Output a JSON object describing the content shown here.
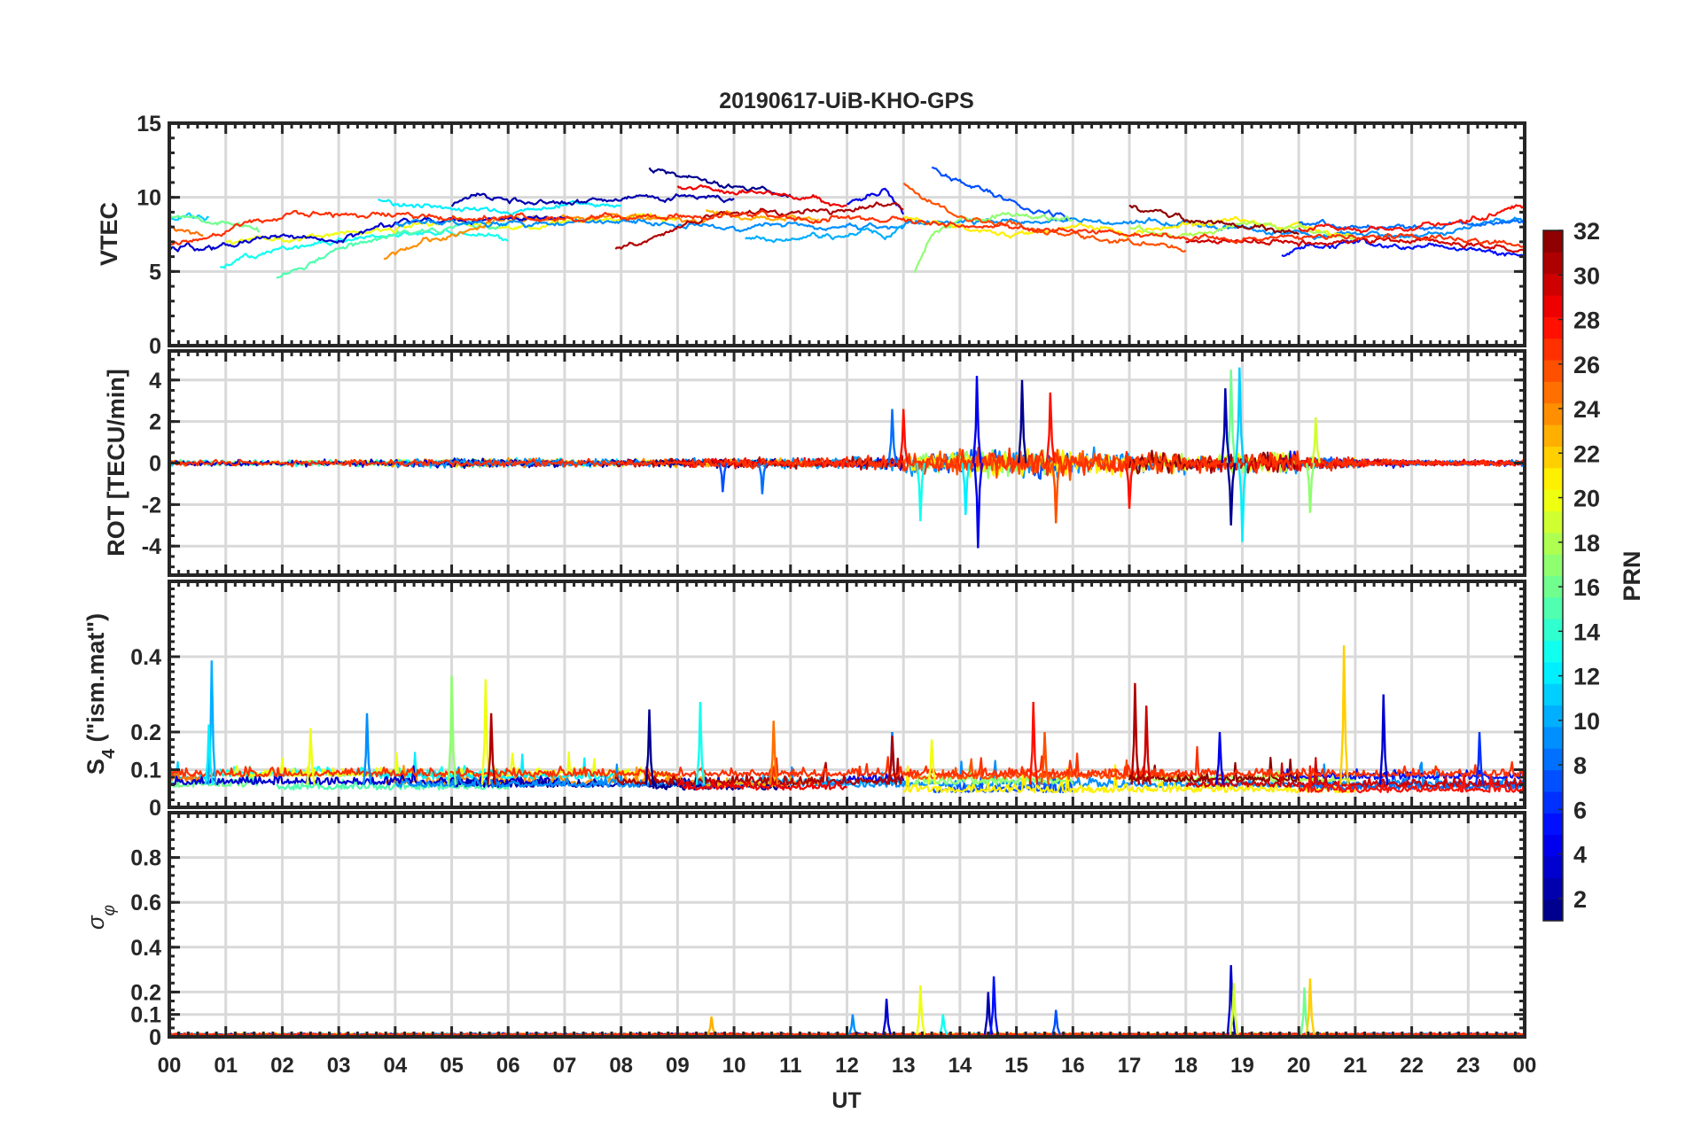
{
  "chart_data": {
    "type": "line",
    "title": "20190617-UiB-KHO-GPS",
    "xlabel": "UT",
    "xlim": [
      0,
      24
    ],
    "xtick_labels": [
      "00",
      "01",
      "02",
      "03",
      "04",
      "05",
      "06",
      "07",
      "08",
      "09",
      "10",
      "11",
      "12",
      "13",
      "14",
      "15",
      "16",
      "17",
      "18",
      "19",
      "20",
      "21",
      "22",
      "23",
      "00"
    ],
    "grid": true,
    "colorbar": {
      "label": "PRN",
      "range": [
        1,
        32
      ],
      "levels": 32,
      "colormap": "jet",
      "ticks": [
        "2",
        "4",
        "6",
        "8",
        "10",
        "12",
        "14",
        "16",
        "18",
        "20",
        "22",
        "24",
        "26",
        "28",
        "30",
        "32"
      ]
    },
    "panels": [
      {
        "id": "vtec",
        "ylabel": "VTEC",
        "ylim": [
          0,
          15
        ],
        "yticks": [
          0,
          5,
          10,
          15
        ],
        "ytick_labels": [
          "0",
          "5",
          "10",
          "15"
        ],
        "yminor": 1
      },
      {
        "id": "rot",
        "ylabel": "ROT [TECU/min]",
        "ylim": [
          -5.4,
          5.4
        ],
        "yticks": [
          -4,
          -2,
          0,
          2,
          4
        ],
        "ytick_labels": [
          "-4",
          "-2",
          "0",
          "2",
          "4"
        ],
        "yminor": 0.5
      },
      {
        "id": "s4",
        "ylabel_main": "S",
        "ylabel_sub": "4",
        "ylabel_rest": " (\"ism.mat\")",
        "ylim": [
          0,
          0.6
        ],
        "yticks": [
          0,
          0.1,
          0.2,
          0.4
        ],
        "ytick_labels": [
          "0",
          "0.1",
          "0.2",
          "0.4"
        ],
        "yminor": 0.02
      },
      {
        "id": "sigma",
        "ylabel_main": "σ",
        "ylabel_sub": "φ",
        "ylim": [
          0,
          1
        ],
        "yticks": [
          0,
          0.1,
          0.2,
          0.4,
          0.6,
          0.8
        ],
        "ytick_labels": [
          "0",
          "0.1",
          "0.2",
          "0.4",
          "0.6",
          "0.8"
        ],
        "yminor": 0.04
      }
    ],
    "vtec_arcs": [
      {
        "prn": 11,
        "points": [
          [
            0,
            8.5
          ],
          [
            0.7,
            8.7
          ]
        ]
      },
      {
        "prn": 16,
        "points": [
          [
            0,
            8.7
          ],
          [
            1,
            8.2
          ],
          [
            1.6,
            7.7
          ]
        ]
      },
      {
        "prn": 25,
        "points": [
          [
            0,
            8
          ],
          [
            0.6,
            7.3
          ]
        ]
      },
      {
        "prn": 13,
        "points": [
          [
            0.9,
            5.2
          ],
          [
            2,
            6.7
          ],
          [
            3,
            7
          ],
          [
            4,
            7.5
          ],
          [
            5,
            7.5
          ],
          [
            6,
            7.2
          ]
        ]
      },
      {
        "prn": 20,
        "points": [
          [
            1,
            7
          ],
          [
            2,
            7.2
          ],
          [
            4,
            7.7
          ],
          [
            5,
            8.5
          ],
          [
            6,
            8
          ],
          [
            7,
            8.4
          ],
          [
            9,
            8.6
          ]
        ]
      },
      {
        "prn": 15,
        "points": [
          [
            1.9,
            4.5
          ],
          [
            3,
            6.5
          ],
          [
            4,
            7.5
          ],
          [
            5,
            7.8
          ],
          [
            6,
            8.2
          ]
        ]
      },
      {
        "prn": 12,
        "points": [
          [
            3.7,
            9.8
          ],
          [
            5,
            9.5
          ],
          [
            6,
            9
          ],
          [
            7,
            9.5
          ],
          [
            8,
            9.6
          ]
        ]
      },
      {
        "prn": 24,
        "points": [
          [
            3.8,
            5.8
          ],
          [
            4.5,
            7.2
          ],
          [
            5,
            7.5
          ],
          [
            6,
            8.5
          ],
          [
            8,
            8.8
          ],
          [
            9.5,
            8.2
          ]
        ]
      },
      {
        "prn": 3,
        "points": [
          [
            0,
            6.5
          ],
          [
            1,
            6.8
          ],
          [
            2,
            7.2
          ],
          [
            3,
            7.3
          ],
          [
            4,
            8.3
          ],
          [
            5,
            8.5
          ],
          [
            6,
            8.6
          ],
          [
            7,
            8.4
          ]
        ]
      },
      {
        "prn": 2,
        "points": [
          [
            5,
            9.5
          ],
          [
            5.5,
            10.3
          ],
          [
            6,
            9.8
          ],
          [
            7,
            9.7
          ],
          [
            9,
            10
          ],
          [
            10,
            10
          ]
        ]
      },
      {
        "prn": 9,
        "points": [
          [
            4,
            8.3
          ],
          [
            6,
            8.2
          ],
          [
            8,
            8.4
          ],
          [
            10,
            8.1
          ],
          [
            12,
            8
          ],
          [
            14,
            8.5
          ],
          [
            16,
            8.4
          ],
          [
            18,
            8.2
          ],
          [
            20,
            7.6
          ],
          [
            22,
            7.3
          ],
          [
            24,
            8.5
          ]
        ]
      },
      {
        "prn": 1,
        "points": [
          [
            8.5,
            12
          ],
          [
            9,
            11.5
          ],
          [
            10,
            10.8
          ],
          [
            11,
            10.2
          ]
        ]
      },
      {
        "prn": 10,
        "points": [
          [
            10.2,
            7.2
          ],
          [
            11,
            7.2
          ],
          [
            12,
            7.5
          ],
          [
            13,
            7.8
          ]
        ]
      },
      {
        "prn": 4,
        "points": [
          [
            12,
            9.5
          ],
          [
            12.7,
            10.5
          ],
          [
            13,
            9
          ]
        ]
      },
      {
        "prn": 7,
        "points": [
          [
            13.5,
            12
          ],
          [
            14,
            11
          ],
          [
            15,
            9.5
          ],
          [
            16,
            8.5
          ]
        ]
      },
      {
        "prn": 17,
        "points": [
          [
            13.2,
            5
          ],
          [
            13.5,
            7.5
          ],
          [
            14,
            8.5
          ],
          [
            15,
            9
          ],
          [
            16,
            8.5
          ]
        ]
      },
      {
        "prn": 21,
        "points": [
          [
            13,
            8.5
          ],
          [
            14,
            8
          ],
          [
            15,
            7.5
          ],
          [
            16,
            8
          ],
          [
            17,
            7.5
          ],
          [
            18,
            8
          ],
          [
            19,
            8.5
          ],
          [
            20,
            8
          ],
          [
            21,
            7.3
          ]
        ]
      },
      {
        "prn": 18,
        "points": [
          [
            17,
            8
          ],
          [
            18,
            7.5
          ],
          [
            19,
            8.2
          ],
          [
            20,
            8
          ],
          [
            21,
            7
          ]
        ]
      },
      {
        "prn": 5,
        "points": [
          [
            19.7,
            6
          ],
          [
            20,
            6.5
          ],
          [
            21,
            7
          ],
          [
            22,
            6.5
          ],
          [
            23,
            6.5
          ],
          [
            24,
            6
          ]
        ]
      },
      {
        "prn": 8,
        "points": [
          [
            20,
            8.2
          ],
          [
            22,
            8
          ],
          [
            24,
            8.4
          ]
        ]
      },
      {
        "prn": 23,
        "points": [
          [
            9.5,
            9
          ],
          [
            10.5,
            8.6
          ],
          [
            11.5,
            8.4
          ]
        ]
      },
      {
        "prn": 31,
        "points": [
          [
            7.9,
            6.5
          ],
          [
            8.5,
            7.2
          ],
          [
            9.5,
            8.7
          ],
          [
            11,
            9
          ],
          [
            13,
            9.3
          ]
        ]
      },
      {
        "prn": 29,
        "points": [
          [
            9,
            10.7
          ],
          [
            10,
            10.5
          ],
          [
            11,
            10
          ],
          [
            12,
            9.5
          ]
        ]
      },
      {
        "prn": 26,
        "points": [
          [
            13,
            10.8
          ],
          [
            14,
            8.8
          ],
          [
            15,
            8
          ],
          [
            16,
            7.5
          ],
          [
            17,
            7
          ],
          [
            18,
            6.5
          ]
        ]
      },
      {
        "prn": 32,
        "points": [
          [
            17,
            9.5
          ],
          [
            18,
            8.5
          ],
          [
            19,
            8
          ],
          [
            20,
            7.5
          ]
        ]
      },
      {
        "prn": 30,
        "points": [
          [
            18,
            7
          ],
          [
            20,
            7
          ],
          [
            22,
            7.2
          ],
          [
            24,
            6.5
          ]
        ]
      },
      {
        "prn": 28,
        "points": [
          [
            20,
            8
          ],
          [
            22,
            7.8
          ],
          [
            23,
            8.5
          ],
          [
            24,
            9.5
          ]
        ]
      },
      {
        "prn": 27,
        "points": [
          [
            0,
            6.7
          ],
          [
            2,
            8.8
          ],
          [
            5,
            8.7
          ],
          [
            8,
            8.6
          ],
          [
            10,
            8.8
          ],
          [
            12,
            8.5
          ],
          [
            14,
            8.2
          ],
          [
            16,
            7.8
          ],
          [
            18,
            7.3
          ],
          [
            20,
            7.2
          ],
          [
            22,
            7.4
          ],
          [
            24,
            6.8
          ]
        ]
      }
    ],
    "rot_envelope_by_hour": [
      0.3,
      0.3,
      0.35,
      0.35,
      0.4,
      0.45,
      0.45,
      0.4,
      0.4,
      0.45,
      0.5,
      0.6,
      0.7,
      1.2,
      1.5,
      1.5,
      1.3,
      1.1,
      0.9,
      1.2,
      0.7,
      0.4,
      0.3,
      0.3,
      0.3
    ],
    "rot_spikes": [
      [
        14.3,
        4.2,
        4
      ],
      [
        14.32,
        -4.1,
        4
      ],
      [
        15.1,
        4,
        1
      ],
      [
        15.6,
        3.4,
        28
      ],
      [
        15.7,
        -2.9,
        26
      ],
      [
        18.8,
        4.5,
        16
      ],
      [
        19,
        -3.8,
        12
      ],
      [
        18.95,
        4.6,
        11
      ],
      [
        18.7,
        3.6,
        2
      ],
      [
        18.8,
        -3,
        1
      ],
      [
        12.8,
        2.6,
        8
      ],
      [
        13,
        2.6,
        28
      ],
      [
        13.3,
        -2.8,
        13
      ],
      [
        14.1,
        -2.5,
        12
      ],
      [
        17,
        -2.2,
        28
      ],
      [
        10.5,
        -1.5,
        8
      ],
      [
        9.8,
        -1.4,
        7
      ],
      [
        20.3,
        2.2,
        19
      ],
      [
        20.2,
        -2.4,
        17
      ]
    ],
    "s4_spikes": [
      [
        0.75,
        0.39,
        10
      ],
      [
        0.7,
        0.22,
        12
      ],
      [
        2.5,
        0.21,
        20
      ],
      [
        3.5,
        0.25,
        9
      ],
      [
        5,
        0.35,
        17
      ],
      [
        5.6,
        0.34,
        20
      ],
      [
        5.7,
        0.25,
        31
      ],
      [
        8.5,
        0.26,
        1
      ],
      [
        9.4,
        0.28,
        13
      ],
      [
        10.7,
        0.23,
        25
      ],
      [
        12.8,
        0.2,
        8
      ],
      [
        15.3,
        0.28,
        28
      ],
      [
        17.1,
        0.33,
        31
      ],
      [
        17.3,
        0.27,
        30
      ],
      [
        20.8,
        0.43,
        22
      ],
      [
        21.5,
        0.3,
        3
      ],
      [
        23.2,
        0.2,
        6
      ],
      [
        12.8,
        0.19,
        31
      ],
      [
        13.5,
        0.18,
        20
      ],
      [
        15.5,
        0.2,
        26
      ],
      [
        18.6,
        0.2,
        4
      ]
    ],
    "sigma_spikes": [
      [
        12.7,
        0.17,
        3
      ],
      [
        13.3,
        0.23,
        20
      ],
      [
        14.5,
        0.2,
        2
      ],
      [
        14.6,
        0.27,
        5
      ],
      [
        15.7,
        0.12,
        7
      ],
      [
        18.8,
        0.32,
        3
      ],
      [
        18.85,
        0.24,
        19
      ],
      [
        20.1,
        0.22,
        16
      ],
      [
        20.2,
        0.26,
        22
      ],
      [
        9.6,
        0.09,
        23
      ],
      [
        12.1,
        0.1,
        9
      ],
      [
        13.7,
        0.1,
        13
      ]
    ]
  }
}
